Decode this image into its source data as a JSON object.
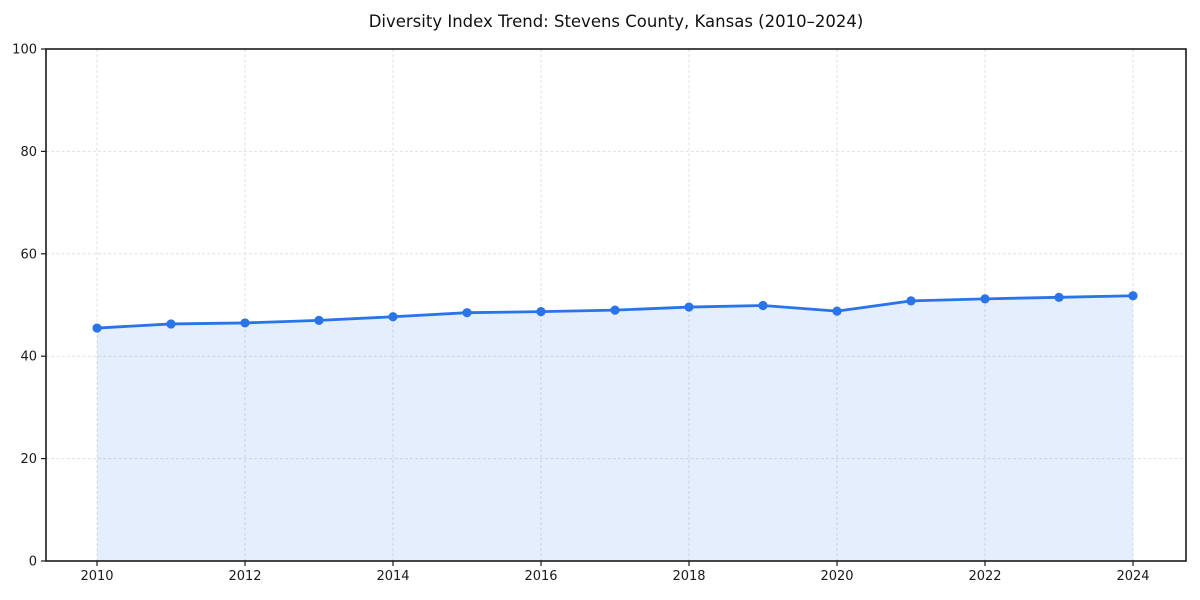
{
  "title": "Diversity Index Trend: Stevens County, Kansas (2010–2024)",
  "chart_data": {
    "type": "area",
    "title": "Diversity Index Trend: Stevens County, Kansas (2010–2024)",
    "x": [
      2010,
      2011,
      2012,
      2013,
      2014,
      2015,
      2016,
      2017,
      2018,
      2019,
      2020,
      2021,
      2022,
      2023,
      2024
    ],
    "series": [
      {
        "name": "Diversity Index",
        "values": [
          45.5,
          46.3,
          46.5,
          47.0,
          47.7,
          48.5,
          48.7,
          49.0,
          49.6,
          49.9,
          48.8,
          50.8,
          51.2,
          51.5,
          51.8
        ]
      }
    ],
    "xlabel": "",
    "ylabel": "",
    "xlim": [
      2009.3,
      2024.7
    ],
    "ylim": [
      0,
      100
    ],
    "yticks": [
      0,
      20,
      40,
      60,
      80,
      100
    ],
    "xticks": [
      2010,
      2012,
      2014,
      2016,
      2018,
      2020,
      2022,
      2024
    ],
    "grid": true,
    "grid_style": "dashed",
    "legend": "none",
    "colors": {
      "line": "#2874e8",
      "marker": "#2874e8",
      "fill": "rgba(40,116,232,0.12)",
      "grid": "#e0e0e0",
      "axis": "#1a1a1a",
      "tick_label": "#1a1a1a",
      "background": "#ffffff"
    }
  }
}
